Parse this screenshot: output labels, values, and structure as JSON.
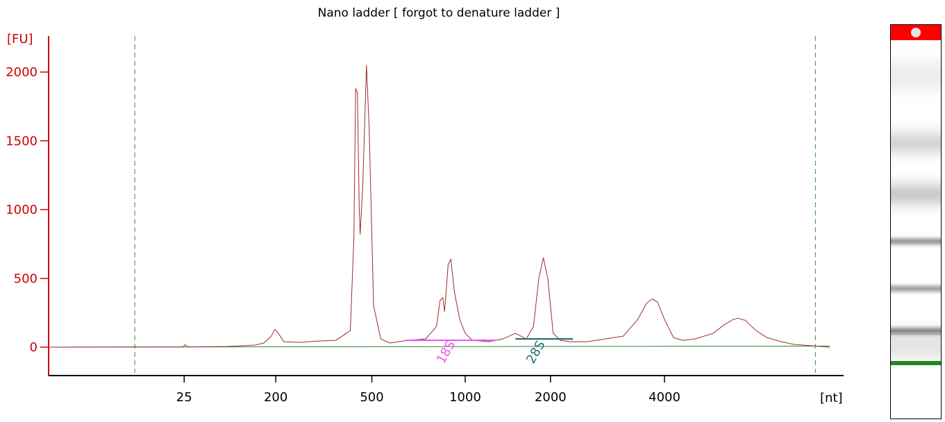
{
  "chart_data": {
    "type": "line",
    "title": "Nano ladder  [ forgot to denature ladder ]",
    "ylabel": "[FU]",
    "xlabel": "[nt]",
    "ylim": [
      -200,
      2200
    ],
    "y_ticks": [
      0,
      500,
      1000,
      1500,
      2000
    ],
    "x_tick_labels": [
      "25",
      "200",
      "500",
      "1000",
      "2000",
      "4000"
    ],
    "x_tick_times": [
      25.55,
      30.65,
      36.0,
      41.2,
      45.95,
      52.3
    ],
    "x_axis_unit": "s (migration time)",
    "grid": false,
    "colors": {
      "trace": "#9c2b2b",
      "axis": "#cc0000",
      "baseline": "#2e8b3a",
      "marker_18S": "#ee55ee",
      "marker_28S": "#2a7070",
      "dashed_gate": "#2e8b3a"
    },
    "gate_lines_x": [
      22.8,
      60.7
    ],
    "series": [
      {
        "values_xy": [
          [
            18.0,
            0
          ],
          [
            25.5,
            2
          ],
          [
            25.6,
            18
          ],
          [
            25.75,
            2
          ],
          [
            28.0,
            5
          ],
          [
            29.5,
            15
          ],
          [
            30.0,
            30
          ],
          [
            30.4,
            80
          ],
          [
            30.6,
            130
          ],
          [
            30.8,
            100
          ],
          [
            31.1,
            40
          ],
          [
            32.0,
            35
          ],
          [
            33.0,
            45
          ],
          [
            34.0,
            50
          ],
          [
            34.8,
            120
          ],
          [
            35.0,
            800
          ],
          [
            35.1,
            1880
          ],
          [
            35.2,
            1850
          ],
          [
            35.3,
            1000
          ],
          [
            35.35,
            820
          ],
          [
            35.5,
            1200
          ],
          [
            35.7,
            2050
          ],
          [
            35.85,
            1600
          ],
          [
            36.1,
            300
          ],
          [
            36.5,
            60
          ],
          [
            37.0,
            30
          ],
          [
            38.0,
            50
          ],
          [
            39.0,
            60
          ],
          [
            39.6,
            150
          ],
          [
            39.8,
            340
          ],
          [
            39.95,
            360
          ],
          [
            40.05,
            260
          ],
          [
            40.25,
            600
          ],
          [
            40.4,
            640
          ],
          [
            40.6,
            400
          ],
          [
            40.9,
            200
          ],
          [
            41.2,
            100
          ],
          [
            41.6,
            50
          ],
          [
            42.5,
            40
          ],
          [
            43.3,
            60
          ],
          [
            44.0,
            100
          ],
          [
            44.6,
            60
          ],
          [
            45.0,
            150
          ],
          [
            45.3,
            500
          ],
          [
            45.55,
            650
          ],
          [
            45.8,
            500
          ],
          [
            46.1,
            100
          ],
          [
            46.5,
            50
          ],
          [
            47.0,
            40
          ],
          [
            48.0,
            40
          ],
          [
            49.0,
            60
          ],
          [
            50.0,
            80
          ],
          [
            50.8,
            200
          ],
          [
            51.3,
            320
          ],
          [
            51.6,
            350
          ],
          [
            51.9,
            330
          ],
          [
            52.3,
            200
          ],
          [
            52.8,
            70
          ],
          [
            53.3,
            50
          ],
          [
            54.0,
            60
          ],
          [
            55.0,
            100
          ],
          [
            55.6,
            160
          ],
          [
            56.1,
            200
          ],
          [
            56.4,
            210
          ],
          [
            56.8,
            195
          ],
          [
            57.4,
            120
          ],
          [
            58.0,
            70
          ],
          [
            58.8,
            40
          ],
          [
            59.5,
            20
          ],
          [
            60.0,
            15
          ],
          [
            61.5,
            0
          ]
        ]
      }
    ],
    "annotations": [
      {
        "label": "18S",
        "x": 40.3,
        "x_start": 37.9,
        "x_end": 42.9,
        "y": 50,
        "color": "#ee55ee"
      },
      {
        "label": "28S",
        "x": 45.3,
        "x_start": 44.0,
        "x_end": 47.2,
        "y": 60,
        "color": "#2a7070"
      }
    ],
    "gel": {
      "marker_top_color": "#ff0000",
      "marker_bottom_color": "#1f8a1f",
      "bands_intensity": [
        {
          "migration": 0.13,
          "intensity": 0.08
        },
        {
          "migration": 0.3,
          "intensity": 0.22
        },
        {
          "migration": 0.43,
          "intensity": 0.28
        },
        {
          "migration": 0.55,
          "intensity": 0.5
        },
        {
          "migration": 0.67,
          "intensity": 0.45
        },
        {
          "migration": 0.78,
          "intensity": 1.0
        },
        {
          "migration": 0.81,
          "intensity": 0.12
        }
      ]
    }
  }
}
